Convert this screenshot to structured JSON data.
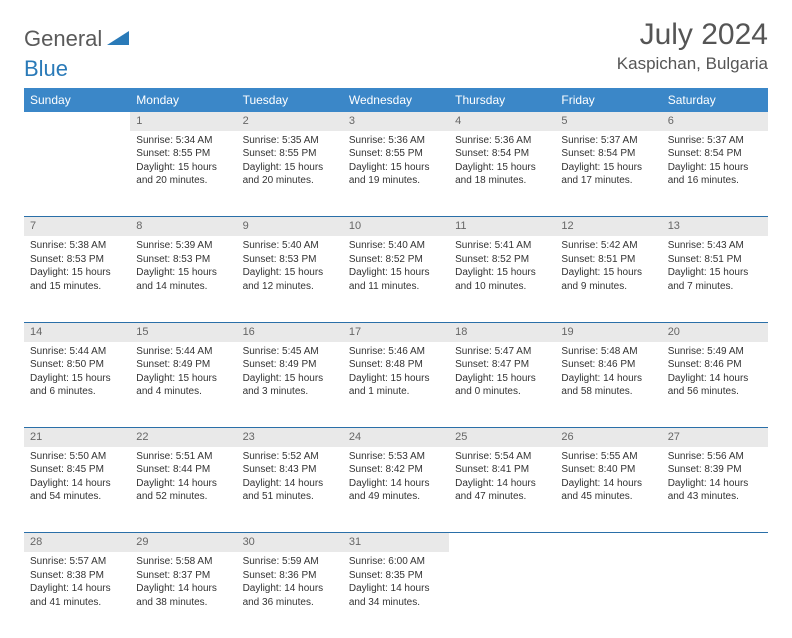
{
  "logo": {
    "part1": "General",
    "part2": "Blue"
  },
  "title": "July 2024",
  "location": "Kaspichan, Bulgaria",
  "colors": {
    "header_bg": "#3b87c8",
    "header_text": "#ffffff",
    "daynum_bg": "#e9e9e9",
    "row_border": "#2a6fa8",
    "logo_gray": "#5a5a5a",
    "logo_blue": "#2a7ab8"
  },
  "weekdays": [
    "Sunday",
    "Monday",
    "Tuesday",
    "Wednesday",
    "Thursday",
    "Friday",
    "Saturday"
  ],
  "weeks": [
    [
      null,
      {
        "n": "1",
        "sr": "5:34 AM",
        "ss": "8:55 PM",
        "dh": "15",
        "dm": "20"
      },
      {
        "n": "2",
        "sr": "5:35 AM",
        "ss": "8:55 PM",
        "dh": "15",
        "dm": "20"
      },
      {
        "n": "3",
        "sr": "5:36 AM",
        "ss": "8:55 PM",
        "dh": "15",
        "dm": "19"
      },
      {
        "n": "4",
        "sr": "5:36 AM",
        "ss": "8:54 PM",
        "dh": "15",
        "dm": "18"
      },
      {
        "n": "5",
        "sr": "5:37 AM",
        "ss": "8:54 PM",
        "dh": "15",
        "dm": "17"
      },
      {
        "n": "6",
        "sr": "5:37 AM",
        "ss": "8:54 PM",
        "dh": "15",
        "dm": "16"
      }
    ],
    [
      {
        "n": "7",
        "sr": "5:38 AM",
        "ss": "8:53 PM",
        "dh": "15",
        "dm": "15"
      },
      {
        "n": "8",
        "sr": "5:39 AM",
        "ss": "8:53 PM",
        "dh": "15",
        "dm": "14"
      },
      {
        "n": "9",
        "sr": "5:40 AM",
        "ss": "8:53 PM",
        "dh": "15",
        "dm": "12"
      },
      {
        "n": "10",
        "sr": "5:40 AM",
        "ss": "8:52 PM",
        "dh": "15",
        "dm": "11"
      },
      {
        "n": "11",
        "sr": "5:41 AM",
        "ss": "8:52 PM",
        "dh": "15",
        "dm": "10"
      },
      {
        "n": "12",
        "sr": "5:42 AM",
        "ss": "8:51 PM",
        "dh": "15",
        "dm": "9"
      },
      {
        "n": "13",
        "sr": "5:43 AM",
        "ss": "8:51 PM",
        "dh": "15",
        "dm": "7"
      }
    ],
    [
      {
        "n": "14",
        "sr": "5:44 AM",
        "ss": "8:50 PM",
        "dh": "15",
        "dm": "6"
      },
      {
        "n": "15",
        "sr": "5:44 AM",
        "ss": "8:49 PM",
        "dh": "15",
        "dm": "4"
      },
      {
        "n": "16",
        "sr": "5:45 AM",
        "ss": "8:49 PM",
        "dh": "15",
        "dm": "3"
      },
      {
        "n": "17",
        "sr": "5:46 AM",
        "ss": "8:48 PM",
        "dh": "15",
        "dm": "1",
        "ms": "minute"
      },
      {
        "n": "18",
        "sr": "5:47 AM",
        "ss": "8:47 PM",
        "dh": "15",
        "dm": "0"
      },
      {
        "n": "19",
        "sr": "5:48 AM",
        "ss": "8:46 PM",
        "dh": "14",
        "dm": "58"
      },
      {
        "n": "20",
        "sr": "5:49 AM",
        "ss": "8:46 PM",
        "dh": "14",
        "dm": "56"
      }
    ],
    [
      {
        "n": "21",
        "sr": "5:50 AM",
        "ss": "8:45 PM",
        "dh": "14",
        "dm": "54"
      },
      {
        "n": "22",
        "sr": "5:51 AM",
        "ss": "8:44 PM",
        "dh": "14",
        "dm": "52"
      },
      {
        "n": "23",
        "sr": "5:52 AM",
        "ss": "8:43 PM",
        "dh": "14",
        "dm": "51"
      },
      {
        "n": "24",
        "sr": "5:53 AM",
        "ss": "8:42 PM",
        "dh": "14",
        "dm": "49"
      },
      {
        "n": "25",
        "sr": "5:54 AM",
        "ss": "8:41 PM",
        "dh": "14",
        "dm": "47"
      },
      {
        "n": "26",
        "sr": "5:55 AM",
        "ss": "8:40 PM",
        "dh": "14",
        "dm": "45"
      },
      {
        "n": "27",
        "sr": "5:56 AM",
        "ss": "8:39 PM",
        "dh": "14",
        "dm": "43"
      }
    ],
    [
      {
        "n": "28",
        "sr": "5:57 AM",
        "ss": "8:38 PM",
        "dh": "14",
        "dm": "41"
      },
      {
        "n": "29",
        "sr": "5:58 AM",
        "ss": "8:37 PM",
        "dh": "14",
        "dm": "38"
      },
      {
        "n": "30",
        "sr": "5:59 AM",
        "ss": "8:36 PM",
        "dh": "14",
        "dm": "36"
      },
      {
        "n": "31",
        "sr": "6:00 AM",
        "ss": "8:35 PM",
        "dh": "14",
        "dm": "34"
      },
      null,
      null,
      null
    ]
  ]
}
